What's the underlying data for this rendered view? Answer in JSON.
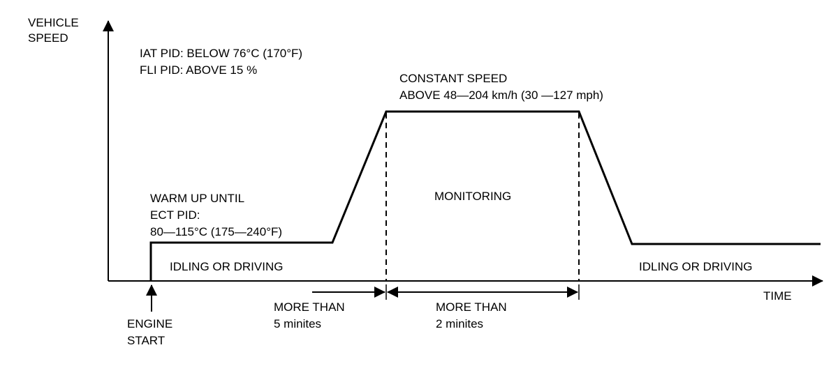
{
  "axes": {
    "y_label_line1": "VEHICLE",
    "y_label_line2": "SPEED",
    "x_label": "TIME"
  },
  "conditions": {
    "iat": "IAT PID: BELOW 76°C (170°F)",
    "fli": "FLI PID: ABOVE 15 %"
  },
  "constant_speed": {
    "line1": "CONSTANT SPEED",
    "line2": "ABOVE 48—204  km/h (30 —127 mph)"
  },
  "warm_up": {
    "line1": "WARM UP UNTIL",
    "line2": "ECT PID:",
    "line3": "80—115°C (175—240°F)"
  },
  "monitoring": "MONITORING",
  "idling_left": "IDLING OR DRIVING",
  "idling_right": "IDLING OR DRIVING",
  "engine_start": {
    "line1": "ENGINE",
    "line2": "START"
  },
  "duration_1": {
    "line1": "MORE THAN",
    "line2": "5 minites"
  },
  "duration_2": {
    "line1": "MORE THAN",
    "line2": "2 minites"
  }
}
